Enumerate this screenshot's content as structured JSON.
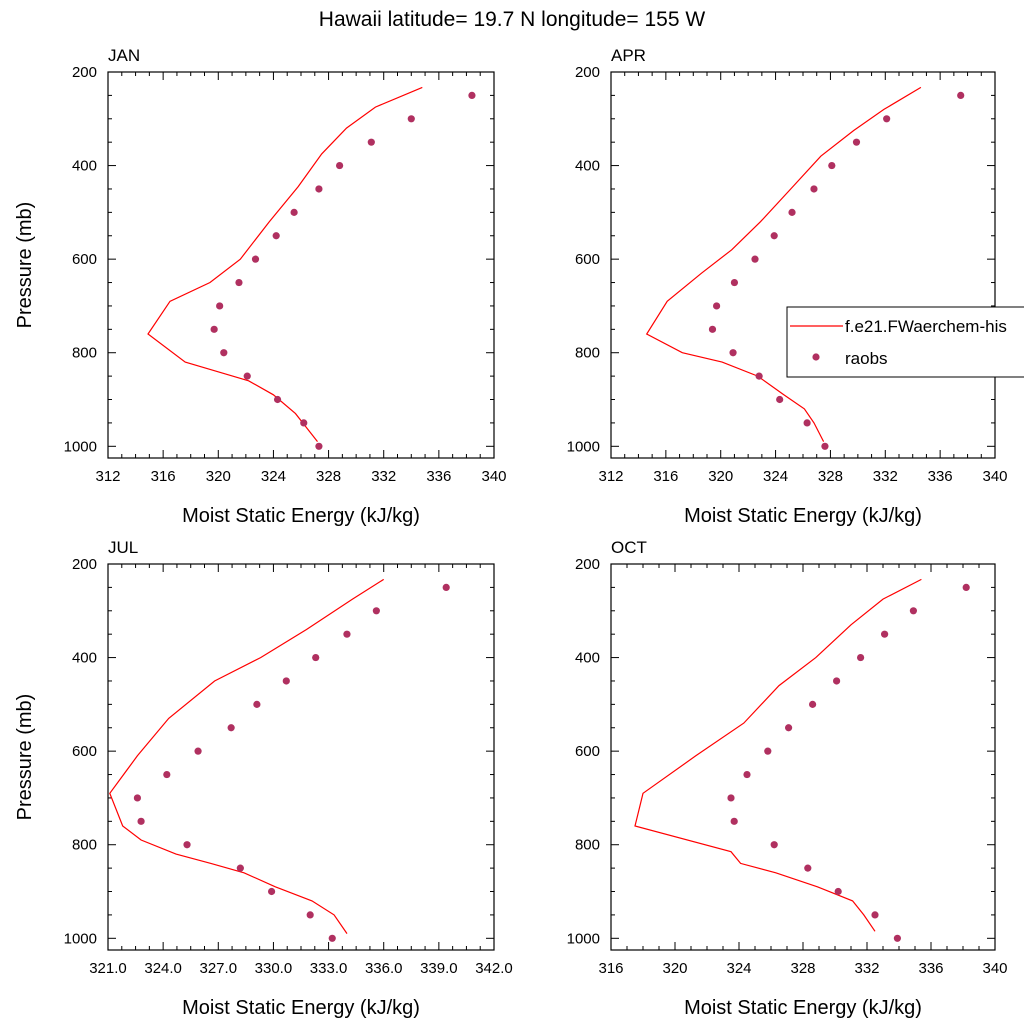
{
  "chart_data": {
    "title": "Hawaii  latitude= 19.7 N longitude= 155 W",
    "legend": {
      "placement": "right of APR panel",
      "entries": [
        {
          "label": "f.e21.FWaerchem-his",
          "kind": "line",
          "color": "#ff0000"
        },
        {
          "label": "raobs",
          "kind": "marker",
          "color": "#b03060"
        }
      ]
    },
    "panels": [
      {
        "type": "line",
        "title": "JAN",
        "xlabel": "Moist Static Energy (kJ/kg)",
        "ylabel": "Pressure (mb)",
        "xlim": [
          312,
          340
        ],
        "ylim": [
          1025,
          200
        ],
        "xticks": [
          312,
          316,
          320,
          324,
          328,
          332,
          336,
          340
        ],
        "xtick_labels": [
          "312",
          "316",
          "320",
          "324",
          "328",
          "332",
          "336",
          "340"
        ],
        "yticks": [
          200,
          400,
          600,
          800,
          1000
        ],
        "ytick_labels": [
          "200",
          "400",
          "600",
          "800",
          "1000"
        ],
        "series": [
          {
            "name": "f.e21.FWaerchem-his",
            "kind": "line",
            "x": [
              334.8,
              331.4,
              329.3,
              327.5,
              325.8,
              323.7,
              321.6,
              319.4,
              316.5,
              314.9,
              317.6,
              319.9,
              322.2,
              324.0,
              325.6,
              326.4,
              327.2
            ],
            "y": [
              233,
              275,
              320,
              375,
              445,
              520,
              600,
              650,
              690,
              760,
              820,
              840,
              860,
              890,
              930,
              960,
              990
            ]
          },
          {
            "name": "raobs",
            "kind": "scatter",
            "x": [
              338.4,
              334.0,
              331.1,
              328.8,
              327.3,
              325.5,
              324.2,
              322.7,
              321.5,
              320.1,
              319.7,
              320.4,
              322.1,
              324.3,
              326.2,
              327.3
            ],
            "y": [
              250,
              300,
              350,
              400,
              450,
              500,
              550,
              600,
              650,
              700,
              750,
              800,
              850,
              900,
              950,
              1000
            ]
          }
        ]
      },
      {
        "type": "line",
        "title": "APR",
        "xlabel": "Moist Static Energy (kJ/kg)",
        "ylabel": "",
        "xlim": [
          312,
          340
        ],
        "ylim": [
          1025,
          200
        ],
        "xticks": [
          312,
          316,
          320,
          324,
          328,
          332,
          336,
          340
        ],
        "xtick_labels": [
          "312",
          "316",
          "320",
          "324",
          "328",
          "332",
          "336",
          "340"
        ],
        "yticks": [
          200,
          400,
          600,
          800,
          1000
        ],
        "ytick_labels": [
          "200",
          "400",
          "600",
          "800",
          "1000"
        ],
        "series": [
          {
            "name": "f.e21.FWaerchem-his",
            "kind": "line",
            "x": [
              334.6,
              331.9,
              329.7,
              327.3,
              325.1,
              322.9,
              320.8,
              318.6,
              316.1,
              314.6,
              317.2,
              320.1,
              322.7,
              324.6,
              326.1,
              326.8,
              327.5
            ],
            "y": [
              233,
              280,
              325,
              380,
              450,
              520,
              580,
              630,
              690,
              760,
              800,
              820,
              850,
              890,
              920,
              950,
              990
            ]
          },
          {
            "name": "raobs",
            "kind": "scatter",
            "x": [
              337.5,
              332.1,
              329.9,
              328.1,
              326.8,
              325.2,
              323.9,
              322.5,
              321.0,
              319.7,
              319.4,
              320.9,
              322.8,
              324.3,
              326.3,
              327.6
            ],
            "y": [
              250,
              300,
              350,
              400,
              450,
              500,
              550,
              600,
              650,
              700,
              750,
              800,
              850,
              900,
              950,
              1000
            ]
          }
        ]
      },
      {
        "type": "line",
        "title": "JUL",
        "xlabel": "Moist Static Energy (kJ/kg)",
        "ylabel": "Pressure (mb)",
        "xlim": [
          321,
          342
        ],
        "ylim": [
          1025,
          200
        ],
        "xticks": [
          321,
          324,
          327,
          330,
          333,
          336,
          339,
          342
        ],
        "xtick_labels": [
          "321.0",
          "324.0",
          "327.0",
          "330.0",
          "333.0",
          "336.0",
          "339.0",
          "342.0"
        ],
        "yticks": [
          200,
          400,
          600,
          800,
          1000
        ],
        "ytick_labels": [
          "200",
          "400",
          "600",
          "800",
          "1000"
        ],
        "series": [
          {
            "name": "f.e21.FWaerchem-his",
            "kind": "line",
            "x": [
              336.0,
              334.3,
              331.8,
              329.3,
              326.8,
              324.3,
              322.6,
              321.1,
              321.8,
              322.8,
              324.7,
              326.6,
              328.4,
              330.1,
              332.1,
              333.3,
              334.0
            ],
            "y": [
              233,
              275,
              340,
              400,
              450,
              530,
              610,
              690,
              760,
              790,
              820,
              840,
              860,
              890,
              920,
              950,
              990
            ]
          },
          {
            "name": "raobs",
            "kind": "scatter",
            "x": [
              339.4,
              335.6,
              334.0,
              332.3,
              330.7,
              329.1,
              327.7,
              325.9,
              324.2,
              322.6,
              322.8,
              325.3,
              328.2,
              329.9,
              332.0,
              333.2
            ],
            "y": [
              250,
              300,
              350,
              400,
              450,
              500,
              550,
              600,
              650,
              700,
              750,
              800,
              850,
              900,
              950,
              1000
            ]
          }
        ]
      },
      {
        "type": "line",
        "title": "OCT",
        "xlabel": "Moist Static Energy (kJ/kg)",
        "ylabel": "",
        "xlim": [
          316,
          340
        ],
        "ylim": [
          1025,
          200
        ],
        "xticks": [
          316,
          320,
          324,
          328,
          332,
          336,
          340
        ],
        "xtick_labels": [
          "316",
          "320",
          "324",
          "328",
          "332",
          "336",
          "340"
        ],
        "yticks": [
          200,
          400,
          600,
          800,
          1000
        ],
        "ytick_labels": [
          "200",
          "400",
          "600",
          "800",
          "1000"
        ],
        "series": [
          {
            "name": "f.e21.FWaerchem-his",
            "kind": "line",
            "x": [
              335.4,
              333.0,
              331.0,
              328.8,
              326.5,
              324.3,
              321.3,
              318.0,
              317.5,
              323.5,
              324.1,
              326.3,
              328.9,
              331.1,
              331.8,
              332.5
            ],
            "y": [
              233,
              275,
              330,
              400,
              460,
              540,
              610,
              690,
              760,
              815,
              840,
              860,
              890,
              920,
              950,
              985
            ]
          },
          {
            "name": "raobs",
            "kind": "scatter",
            "x": [
              338.2,
              334.9,
              333.1,
              331.6,
              330.1,
              328.6,
              327.1,
              325.8,
              324.5,
              323.5,
              323.7,
              326.2,
              328.3,
              330.2,
              332.5,
              333.9
            ],
            "y": [
              250,
              300,
              350,
              400,
              450,
              500,
              550,
              600,
              650,
              700,
              750,
              800,
              850,
              900,
              950,
              1000
            ]
          }
        ]
      }
    ]
  }
}
